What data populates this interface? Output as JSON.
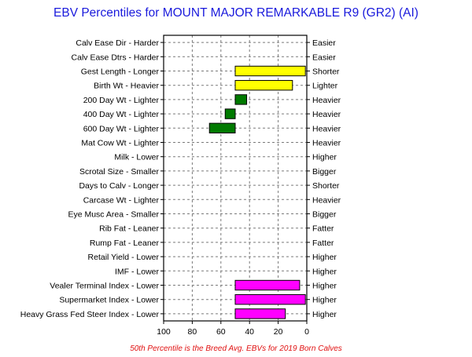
{
  "chart_data": {
    "type": "bar",
    "orientation": "horizontal",
    "title": "EBV Percentiles for MOUNT MAJOR REMARKABLE R9 (GR2) (AI)",
    "footnote": "50th Percentile is the Breed Avg. EBVs for 2019 Born Calves",
    "x_axis": {
      "range": [
        100,
        0
      ],
      "ticks": [
        "100",
        "80",
        "60",
        "40",
        "20",
        "0"
      ],
      "grid": true
    },
    "baseline": 50,
    "rows": [
      {
        "left_label": "Calv Ease Dir - Harder",
        "right_label": "Easier",
        "value": null,
        "color": null
      },
      {
        "left_label": "Calv Ease Dtrs - Harder",
        "right_label": "Easier",
        "value": null,
        "color": null
      },
      {
        "left_label": "Gest Length - Longer",
        "right_label": "Shorter",
        "value": 1,
        "color": "#ffff00"
      },
      {
        "left_label": "Birth Wt - Heavier",
        "right_label": "Lighter",
        "value": 10,
        "color": "#ffff00"
      },
      {
        "left_label": "200 Day Wt - Lighter",
        "right_label": "Heavier",
        "value": 42,
        "color": "#007a00"
      },
      {
        "left_label": "400 Day Wt - Lighter",
        "right_label": "Heavier",
        "value": 57,
        "color": "#007a00"
      },
      {
        "left_label": "600 Day Wt - Lighter",
        "right_label": "Heavier",
        "value": 68,
        "color": "#007a00"
      },
      {
        "left_label": "Mat Cow Wt - Lighter",
        "right_label": "Heavier",
        "value": null,
        "color": null
      },
      {
        "left_label": "Milk - Lower",
        "right_label": "Higher",
        "value": null,
        "color": null
      },
      {
        "left_label": "Scrotal Size - Smaller",
        "right_label": "Bigger",
        "value": null,
        "color": null
      },
      {
        "left_label": "Days to Calv - Longer",
        "right_label": "Shorter",
        "value": null,
        "color": null
      },
      {
        "left_label": "Carcase Wt - Lighter",
        "right_label": "Heavier",
        "value": null,
        "color": null
      },
      {
        "left_label": "Eye Musc Area - Smaller",
        "right_label": "Bigger",
        "value": null,
        "color": null
      },
      {
        "left_label": "Rib Fat - Leaner",
        "right_label": "Fatter",
        "value": null,
        "color": null
      },
      {
        "left_label": "Rump Fat - Leaner",
        "right_label": "Fatter",
        "value": null,
        "color": null
      },
      {
        "left_label": "Retail Yield - Lower",
        "right_label": "Higher",
        "value": null,
        "color": null
      },
      {
        "left_label": "IMF - Lower",
        "right_label": "Higher",
        "value": null,
        "color": null
      },
      {
        "left_label": "Vealer Terminal Index - Lower",
        "right_label": "Higher",
        "value": 5,
        "color": "#ff00ff"
      },
      {
        "left_label": "Supermarket Index - Lower",
        "right_label": "Higher",
        "value": 1,
        "color": "#ff00ff"
      },
      {
        "left_label": "Heavy Grass Fed Steer Index - Lower",
        "right_label": "Higher",
        "value": 15,
        "color": "#ff00ff"
      }
    ]
  }
}
